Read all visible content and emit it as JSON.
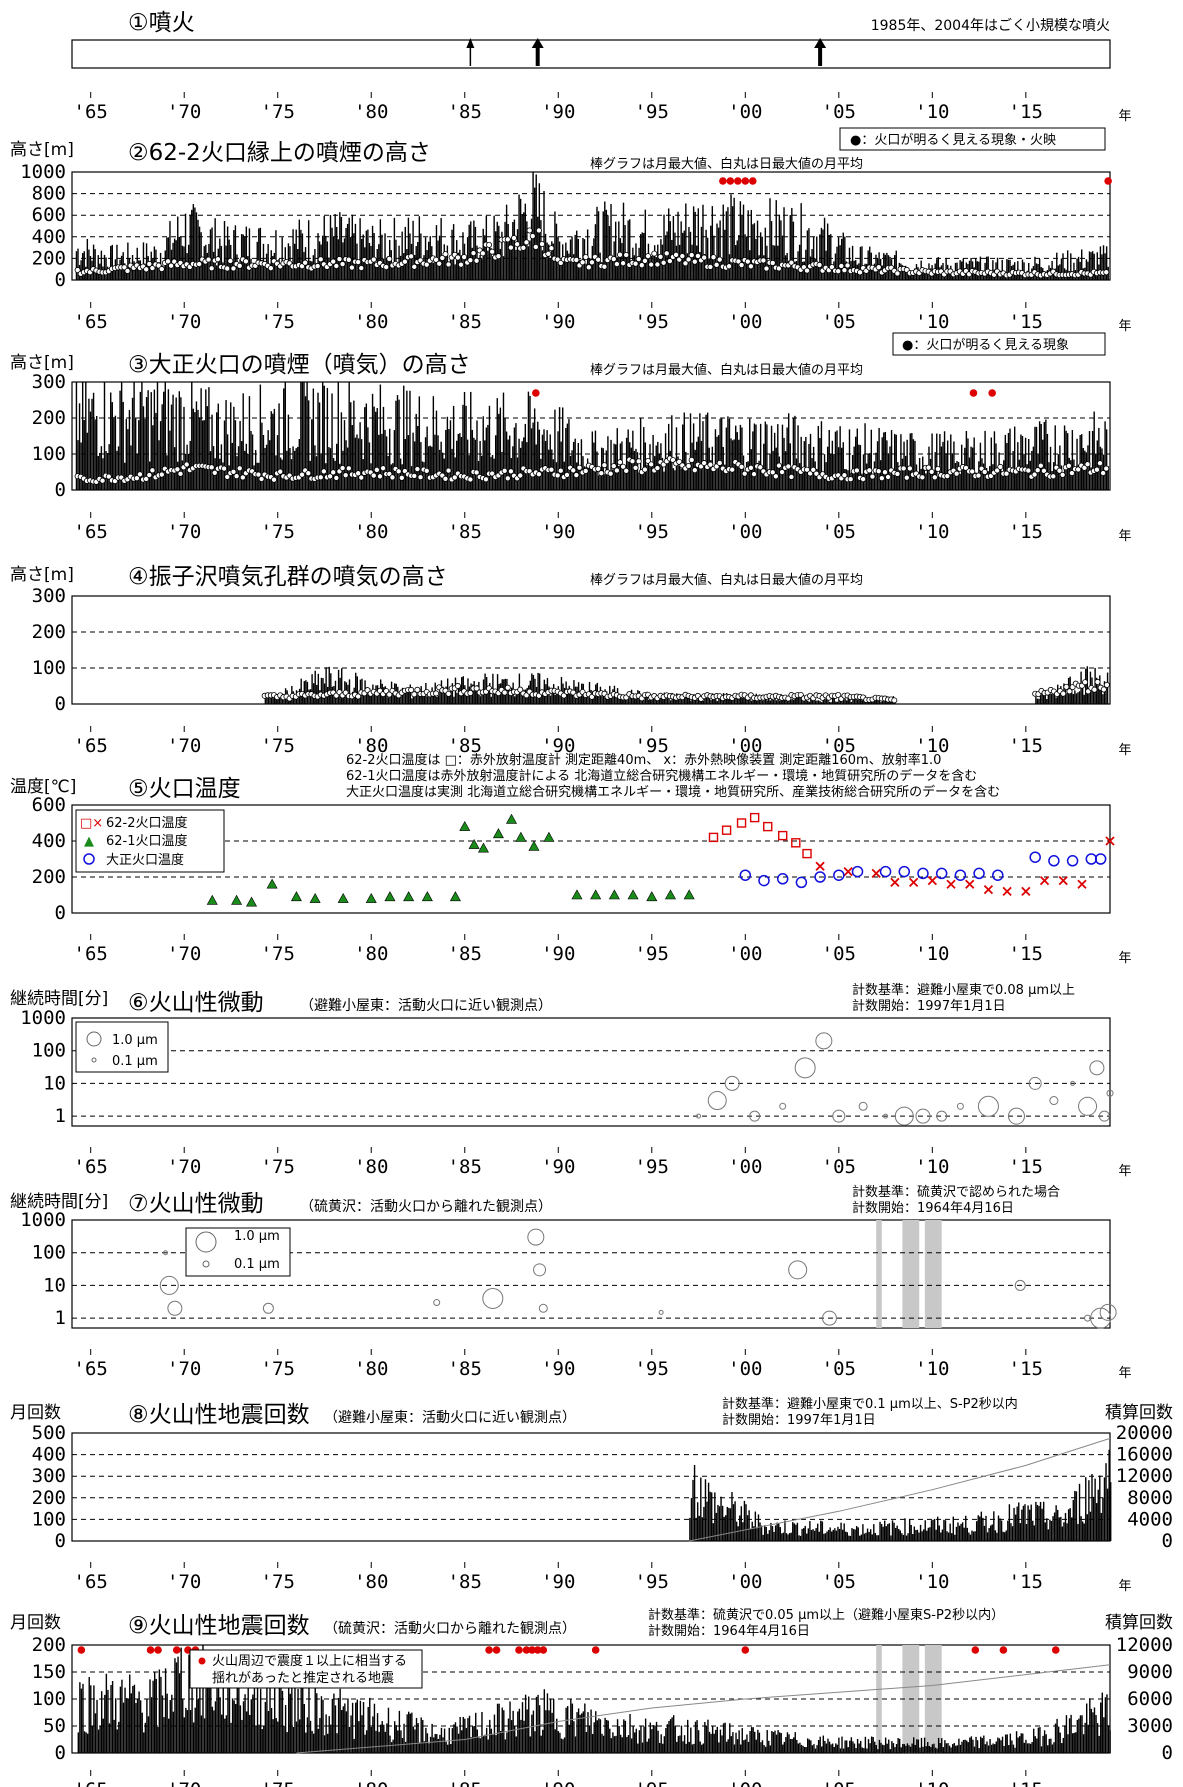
{
  "year_suffix": "年",
  "x_tick_labels": [
    "'65",
    "'70",
    "'75",
    "'80",
    "'85",
    "'90",
    "'95",
    "'00",
    "'05",
    "'10",
    "'15"
  ],
  "colors": {
    "bar": "#000000",
    "eruption": "#000000",
    "marker_red": "#dd0000",
    "dash": "#000000",
    "mask": "#c8c8c8"
  },
  "panels": {
    "p1": {
      "title": "①噴火",
      "note": "1985年、2004年はごく小規模な噴火"
    },
    "p2": {
      "title": "②62-2火口縁上の噴煙の高さ",
      "ylabel": "高さ[m]",
      "legend": "●：火口が明るく見える現象・火映",
      "caption": "棒グラフは月最大値、白丸は日最大値の月平均",
      "yticks": [
        "1000",
        "800",
        "600",
        "400",
        "200",
        "0"
      ]
    },
    "p3": {
      "title": "③大正火口の噴煙（噴気）の高さ",
      "ylabel": "高さ[m]",
      "legend": "●：火口が明るく見える現象",
      "caption": "棒グラフは月最大値、白丸は日最大値の月平均",
      "yticks": [
        "300",
        "200",
        "100",
        "0"
      ]
    },
    "p4": {
      "title": "④振子沢噴気孔群の噴気の高さ",
      "ylabel": "高さ[m]",
      "caption": "棒グラフは月最大値、白丸は日最大値の月平均",
      "yticks": [
        "300",
        "200",
        "100",
        "0"
      ]
    },
    "p5": {
      "title": "⑤火口温度",
      "ylabel": "温度[℃]",
      "notes": [
        "62-2火口温度は □：赤外放射温度計 測定距離40m、 x：赤外熱映像装置 測定距離160m、放射率1.0",
        "62-1火口温度は赤外放射温度計による 北海道立総合研究機構エネルギー・環境・地質研究所のデータを含む",
        "大正火口温度は実測 北海道立総合研究機構エネルギー・環境・地質研究所、産業技術総合研究所のデータを含む"
      ],
      "legend": [
        "62-2火口温度",
        "62-1火口温度",
        "大正火口温度"
      ],
      "yticks": [
        "600",
        "400",
        "200",
        "0"
      ]
    },
    "p6": {
      "title": "⑥火山性微動",
      "subtitle": "（避難小屋東：活動火口に近い観測点）",
      "ylabel": "継続時間[分]",
      "notes": [
        "計数基準：避難小屋東で0.08 μm以上",
        "計数開始：1997年1月1日"
      ],
      "legend": [
        "1.0 μm",
        "0.1 μm"
      ],
      "yticks": [
        "1000",
        "100",
        "10",
        "1"
      ]
    },
    "p7": {
      "title": "⑦火山性微動",
      "subtitle": "（硫黄沢：活動火口から離れた観測点）",
      "ylabel": "継続時間[分]",
      "notes": [
        "計数基準：硫黄沢で認められた場合",
        "計数開始：1964年4月16日"
      ],
      "legend": [
        "1.0 μm",
        "0.1 μm"
      ],
      "yticks": [
        "1000",
        "100",
        "10",
        "1"
      ]
    },
    "p8": {
      "title": "⑧火山性地震回数",
      "subtitle": "（避難小屋東：活動火口に近い観測点）",
      "ylabel": "月回数",
      "ylabel_right": "積算回数",
      "notes": [
        "計数基準：避難小屋東で0.1 μm以上、S-P2秒以内",
        "計数開始：1997年1月1日"
      ],
      "yticks": [
        "500",
        "400",
        "300",
        "200",
        "100",
        "0"
      ],
      "yticks_right": [
        "20000",
        "16000",
        "12000",
        "8000",
        "4000",
        "0"
      ]
    },
    "p9": {
      "title": "⑨火山性地震回数",
      "subtitle": "（硫黄沢：活動火口から離れた観測点）",
      "ylabel": "月回数",
      "ylabel_right": "積算回数",
      "notes": [
        "計数基準：硫黄沢で0.05 μm以上（避難小屋東S-P2秒以内）",
        "計数開始：1964年4月16日"
      ],
      "legend": [
        "火山周辺で震度１以上に相当する",
        "揺れがあったと推定される地震"
      ],
      "yticks": [
        "200",
        "150",
        "100",
        "50",
        "0"
      ],
      "yticks_right": [
        "12000",
        "9000",
        "6000",
        "3000",
        "0"
      ]
    }
  },
  "chart_data": [
    {
      "type": "events",
      "x_range": [
        1964,
        2019.5
      ],
      "eruption_years": [
        1985.3,
        1988.9,
        2004.0
      ],
      "major_eruption_years": [
        1988.9,
        2004.0
      ]
    },
    {
      "type": "bar",
      "unit": "m",
      "ylim": [
        0,
        1000
      ],
      "series_bar_months_max": {
        "x": [
          1964.5,
          1966,
          1968.5,
          1970,
          1972,
          1975,
          1978,
          1980,
          1983,
          1985,
          1987,
          1988.5,
          1989,
          1990,
          1993,
          1995,
          1998,
          2000,
          2002,
          2003.8,
          2006,
          2010,
          2015,
          2019
        ],
        "y": [
          400,
          300,
          350,
          700,
          500,
          500,
          600,
          500,
          600,
          500,
          600,
          1000,
          900,
          500,
          700,
          600,
          800,
          700,
          700,
          600,
          300,
          200,
          200,
          300
        ]
      },
      "series_monthly_mean": {
        "x": [
          1965,
          1970,
          1975,
          1980,
          1985,
          1989,
          1990,
          1995,
          2000,
          2005,
          2010,
          2015,
          2019
        ],
        "y": [
          80,
          150,
          150,
          150,
          200,
          400,
          150,
          200,
          150,
          110,
          70,
          60,
          60
        ]
      },
      "incandescence_years": [
        1998.8,
        1999.2,
        1999.6,
        2000.0,
        2000.4,
        2019.4
      ]
    },
    {
      "type": "bar",
      "unit": "m",
      "ylim": [
        0,
        300
      ],
      "series_bar_months_max": {
        "x": [
          1964.3,
          1967.5,
          1969.5,
          1972,
          1977,
          1984,
          1989,
          1992,
          1995.5,
          2002,
          2009,
          2012,
          2018
        ],
        "y": [
          300,
          300,
          300,
          250,
          300,
          250,
          250,
          150,
          200,
          200,
          150,
          150,
          200
        ]
      },
      "series_monthly_mean": {
        "x": [
          1965,
          1968,
          1970,
          1975,
          1980,
          1985,
          1990,
          1995,
          2000,
          2005,
          2010,
          2015,
          2019
        ],
        "y": [
          30,
          40,
          60,
          40,
          50,
          40,
          50,
          70,
          60,
          40,
          50,
          50,
          60
        ]
      },
      "incandescence_years": [
        1988.8,
        2012.2,
        2013.2
      ]
    },
    {
      "type": "bar",
      "unit": "m",
      "ylim": [
        0,
        300
      ],
      "series_bar_months_max": {
        "x": [
          1975,
          1977.5,
          1982,
          1986,
          1987.5,
          1989,
          1995,
          2000,
          2004,
          2016,
          2017.5,
          2019
        ],
        "y": [
          30,
          100,
          50,
          80,
          80,
          80,
          30,
          30,
          20,
          30,
          100,
          100
        ]
      },
      "series_monthly_mean": {
        "x": [
          1975,
          1980,
          1985,
          1990,
          1995,
          2000,
          2005,
          2008,
          2015,
          2018,
          2019
        ],
        "y": [
          20,
          30,
          40,
          30,
          20,
          20,
          20,
          10,
          20,
          50,
          50
        ]
      }
    },
    {
      "type": "scatter",
      "unit": "℃",
      "ylim": [
        0,
        600
      ],
      "series": [
        {
          "name": "62-2火口温度",
          "x": [
            1998.3,
            1999,
            1999.8,
            2000.5,
            2001.2,
            2002,
            2002.7,
            2003.3,
            2004,
            2005.5,
            2007,
            2008,
            2009,
            2010,
            2011,
            2012,
            2013,
            2014,
            2015,
            2016,
            2017,
            2018,
            2019.5
          ],
          "y": [
            420,
            460,
            500,
            530,
            480,
            430,
            390,
            330,
            260,
            230,
            220,
            170,
            170,
            180,
            160,
            160,
            130,
            120,
            120,
            180,
            180,
            160,
            400
          ]
        },
        {
          "name": "62-1火口温度",
          "x": [
            1971.5,
            1972.8,
            1973.6,
            1974.7,
            1976,
            1977,
            1978.5,
            1980,
            1981,
            1982,
            1983,
            1984.5,
            1985,
            1985.5,
            1986,
            1986.8,
            1987.5,
            1988,
            1988.7,
            1989.5,
            1991,
            1992,
            1993,
            1994,
            1995,
            1996,
            1997
          ],
          "y": [
            70,
            70,
            60,
            160,
            90,
            80,
            80,
            80,
            90,
            90,
            90,
            90,
            480,
            380,
            360,
            440,
            520,
            420,
            370,
            420,
            100,
            100,
            100,
            100,
            90,
            100,
            100
          ]
        },
        {
          "name": "大正火口温度",
          "x": [
            2000,
            2001,
            2002,
            2003,
            2004,
            2005,
            2006,
            2007.5,
            2008.5,
            2009.5,
            2010.5,
            2011.5,
            2012.5,
            2013.5,
            2015.5,
            2016.5,
            2017.5,
            2018.5,
            2019
          ],
          "y": [
            210,
            180,
            190,
            170,
            200,
            210,
            230,
            230,
            230,
            220,
            220,
            210,
            220,
            210,
            310,
            290,
            290,
            300,
            300
          ]
        }
      ]
    },
    {
      "type": "bubble",
      "unit": "min",
      "yscale": "log",
      "ylim": [
        0.5,
        1000
      ],
      "start": "1997-01-01",
      "x": [
        1997.5,
        1998.5,
        1999.3,
        2000.5,
        2002,
        2003.2,
        2004.2,
        2005,
        2006.3,
        2007.5,
        2008.5,
        2009.5,
        2010.5,
        2011.5,
        2013,
        2014.5,
        2015.5,
        2016.5,
        2017.5,
        2018.3,
        2018.8,
        2019.2,
        2019.5
      ],
      "y": [
        1,
        3,
        10,
        1,
        2,
        30,
        200,
        1,
        2,
        1,
        1,
        1,
        1,
        2,
        2,
        1,
        10,
        3,
        10,
        2,
        30,
        1,
        5
      ]
    },
    {
      "type": "bubble",
      "unit": "min",
      "yscale": "log",
      "ylim": [
        0.5,
        1000
      ],
      "start": "1964-04-16",
      "x": [
        1969,
        1969.2,
        1969.5,
        1974.5,
        1983.5,
        1986.5,
        1988.8,
        1989,
        1989.2,
        1995.5,
        2002.8,
        2004.5,
        2014.7,
        2018.3,
        2019,
        2019.4
      ],
      "y": [
        100,
        10,
        2,
        2,
        3,
        4,
        300,
        30,
        2,
        1.5,
        30,
        1,
        10,
        1,
        1,
        1.5
      ],
      "no_data_years": [
        [
          2007.0,
          2007.3
        ],
        [
          2008.4,
          2009.3
        ],
        [
          2009.6,
          2010.5
        ]
      ]
    },
    {
      "type": "bar",
      "ylim": [
        0,
        500
      ],
      "ylim_right": [
        0,
        20000
      ],
      "start": "1997-01-01",
      "x": [
        1997.3,
        1998.3,
        1999.5,
        2001,
        2003,
        2006,
        2009,
        2012,
        2015,
        2017,
        2019.4
      ],
      "y": [
        370,
        250,
        200,
        100,
        90,
        80,
        100,
        110,
        180,
        150,
        470
      ],
      "cumulative_end": 19000
    },
    {
      "type": "bar",
      "ylim": [
        0,
        200
      ],
      "ylim_right": [
        0,
        12000
      ],
      "start": "1964-04-16",
      "x": [
        1968.5,
        1969.7,
        1970.2,
        1983.8,
        1988.9,
        1995.2,
        1996,
        2004,
        2011,
        2015.3,
        2019.4
      ],
      "y": [
        140,
        200,
        200,
        50,
        110,
        60,
        65,
        30,
        25,
        40,
        110
      ],
      "felt_earthquake_years": [
        1964.5,
        1968.2,
        1968.6,
        1969.6,
        1970.2,
        1970.6,
        1986.3,
        1986.7,
        1987.9,
        1988.3,
        1988.6,
        1988.9,
        1989.2,
        1992,
        2000,
        2012.3,
        2013.8,
        2016.6
      ],
      "no_data_years": [
        [
          2007.0,
          2007.3
        ],
        [
          2008.4,
          2009.3
        ],
        [
          2009.6,
          2010.5
        ]
      ],
      "cumulative_end": 9800
    }
  ]
}
